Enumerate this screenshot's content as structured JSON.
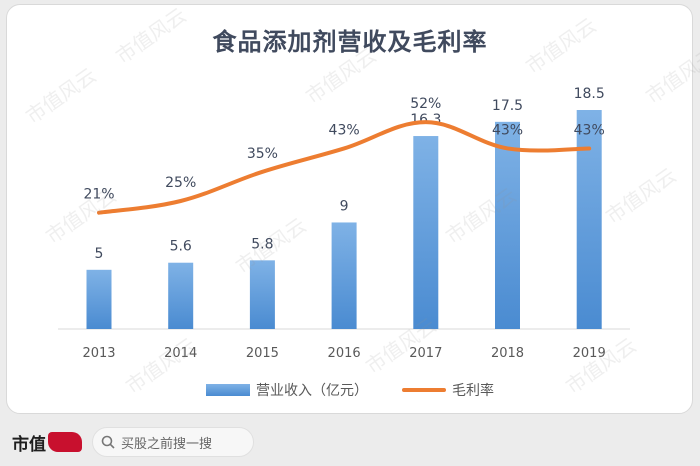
{
  "brand": {
    "name": "市值",
    "watermark": "市值风云"
  },
  "search": {
    "placeholder": "买股之前搜一搜",
    "icon": "search-icon"
  },
  "chart_data": {
    "type": "bar",
    "title": "食品添加剂营收及毛利率",
    "categories": [
      "2013",
      "2014",
      "2015",
      "2016",
      "2017",
      "2018",
      "2019"
    ],
    "series": [
      {
        "name": "营业收入（亿元）",
        "type": "bar",
        "values": [
          5,
          5.6,
          5.8,
          9,
          16.3,
          17.5,
          18.5
        ],
        "labels": [
          "5",
          "5.6",
          "5.8",
          "9",
          "16.3",
          "17.5",
          "18.5"
        ],
        "color": "#5b9bd5"
      },
      {
        "name": "毛利率",
        "type": "line",
        "values": [
          21,
          25,
          35,
          43,
          52,
          43,
          43
        ],
        "labels": [
          "21%",
          "25%",
          "35%",
          "43%",
          "52%",
          "43%",
          "43%"
        ],
        "color": "#ed7d31"
      }
    ],
    "ylim_bar": [
      0,
      19.5
    ],
    "ylim_line": [
      0,
      62
    ],
    "legend_position": "bottom",
    "grid": false
  }
}
